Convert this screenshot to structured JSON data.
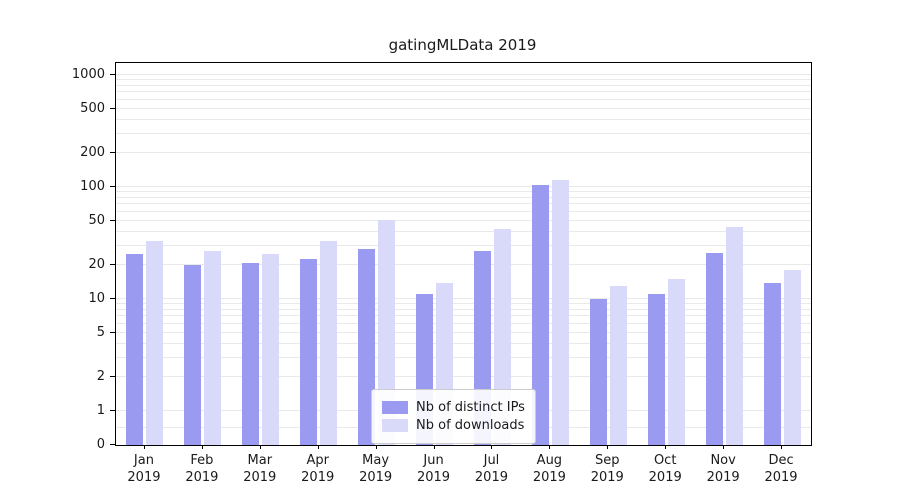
{
  "title": "gatingMLData 2019",
  "colors": {
    "ips": "#9a9af0",
    "downloads": "#d9d9f9",
    "grid": "#e9e9e9",
    "axis": "#000000",
    "legend_border": "#cccccc"
  },
  "legend": {
    "items": [
      {
        "label": "Nb of distinct IPs",
        "color_key": "ips"
      },
      {
        "label": "Nb of downloads",
        "color_key": "downloads"
      }
    ]
  },
  "chart_data": {
    "type": "bar",
    "title": "gatingMLData 2019",
    "yscale": "symlog",
    "ylim": [
      0,
      1200
    ],
    "yticks": [
      0,
      1,
      2,
      5,
      10,
      20,
      50,
      100,
      200,
      500,
      1000
    ],
    "grid": "horizontal-minor",
    "legend_position": "lower center",
    "categories": [
      {
        "month": "Jan",
        "year": "2019"
      },
      {
        "month": "Feb",
        "year": "2019"
      },
      {
        "month": "Mar",
        "year": "2019"
      },
      {
        "month": "Apr",
        "year": "2019"
      },
      {
        "month": "May",
        "year": "2019"
      },
      {
        "month": "Jun",
        "year": "2019"
      },
      {
        "month": "Jul",
        "year": "2019"
      },
      {
        "month": "Aug",
        "year": "2019"
      },
      {
        "month": "Sep",
        "year": "2019"
      },
      {
        "month": "Oct",
        "year": "2019"
      },
      {
        "month": "Nov",
        "year": "2019"
      },
      {
        "month": "Dec",
        "year": "2019"
      }
    ],
    "series": [
      {
        "name": "Nb of distinct IPs",
        "color_key": "ips",
        "values": [
          25,
          20,
          21,
          23,
          28,
          11,
          27,
          105,
          10,
          11,
          26,
          14
        ]
      },
      {
        "name": "Nb of downloads",
        "color_key": "downloads",
        "values": [
          33,
          27,
          25,
          33,
          51,
          14,
          42,
          115,
          13,
          15,
          44,
          18
        ]
      }
    ]
  }
}
